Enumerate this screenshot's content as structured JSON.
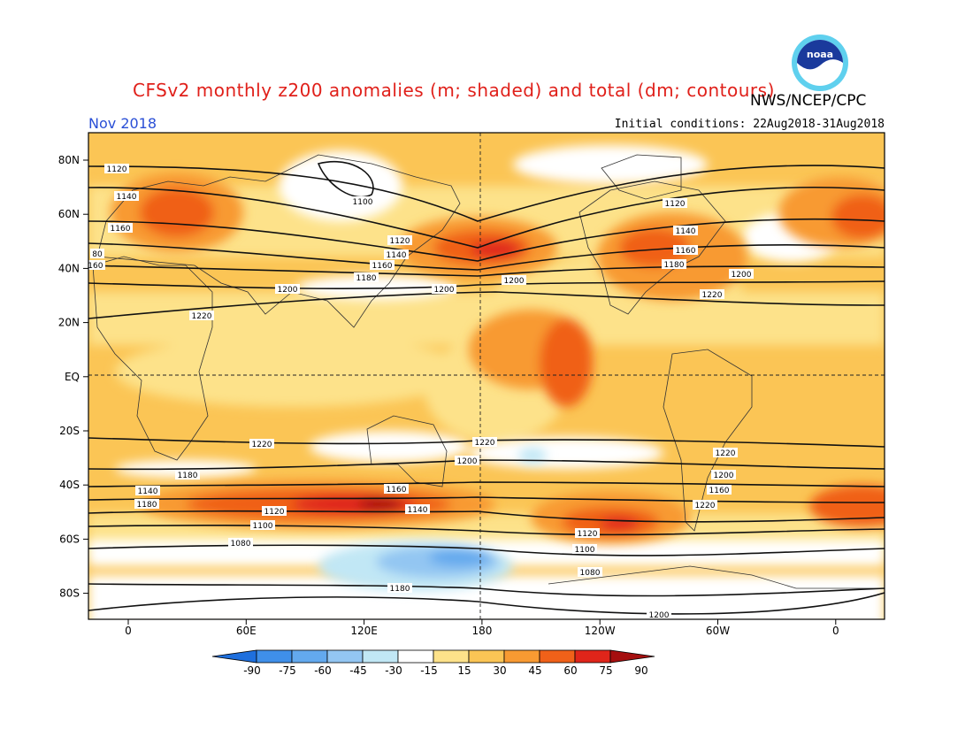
{
  "title": "CFSv2 monthly z200 anomalies (m; shaded) and total (dm; contours)",
  "agency": "NWS/NCEP/CPC",
  "month": "Nov 2018",
  "initial_conditions": "Initial conditions: 22Aug2018-31Aug2018",
  "logo": {
    "name": "noaa-logo",
    "text": "noaa"
  },
  "map": {
    "lat_labels": [
      "80N",
      "60N",
      "40N",
      "20N",
      "EQ",
      "20S",
      "40S",
      "60S",
      "80S"
    ],
    "lon_labels": [
      "0",
      "60E",
      "120E",
      "180",
      "120W",
      "60W",
      "0"
    ],
    "contour_labels": [
      "1120",
      "1140",
      "1160",
      "80",
      "1100",
      "1120",
      "1140",
      "1160",
      "1180",
      "1200",
      "1220",
      "1200",
      "1120",
      "1140",
      "1160",
      "1180",
      "1200",
      "1220",
      "1200",
      "1220",
      "1220",
      "1200",
      "1220",
      "1200",
      "1180",
      "1160",
      "1140",
      "1120",
      "1100",
      "1080",
      "1180",
      "1160",
      "1140",
      "1120",
      "1100",
      "1080",
      "1220",
      "1200",
      "1180",
      "1160"
    ]
  },
  "colorbar": {
    "ticks": [
      "-90",
      "-75",
      "-60",
      "-45",
      "-30",
      "-15",
      "15",
      "30",
      "45",
      "60",
      "75",
      "90"
    ],
    "colors": [
      "#1e6fdd",
      "#3f8fe9",
      "#63a9ee",
      "#93c6f2",
      "#c1e7f5",
      "#ffffff",
      "#fde28a",
      "#fbc555",
      "#f89a32",
      "#f06119",
      "#e0251a",
      "#a50f0f"
    ]
  }
}
